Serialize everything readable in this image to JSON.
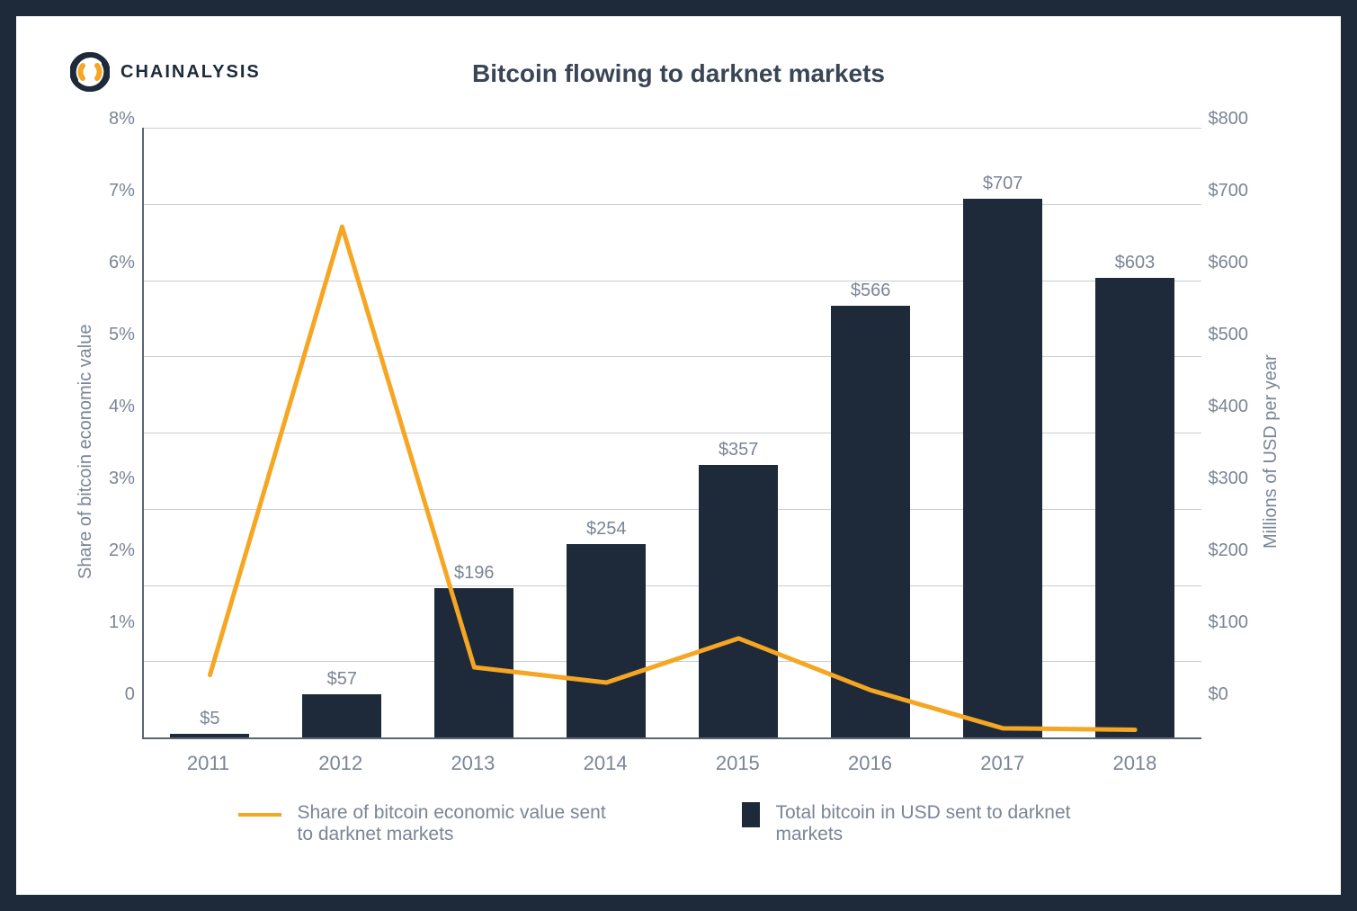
{
  "brand": "CHAINALYSIS",
  "logo": {
    "outer_color": "#1e2a3a",
    "accent_color": "#f5a623"
  },
  "chart": {
    "type": "bar+line",
    "title": "Bitcoin flowing to darknet markets",
    "categories": [
      "2011",
      "2012",
      "2013",
      "2014",
      "2015",
      "2016",
      "2017",
      "2018"
    ],
    "bars": {
      "values": [
        5,
        57,
        196,
        254,
        357,
        566,
        707,
        603
      ],
      "labels": [
        "$5",
        "$57",
        "$196",
        "$254",
        "$357",
        "$566",
        "$707",
        "$603"
      ],
      "color": "#1e2a3a",
      "axis": "right",
      "width_frac": 0.6
    },
    "line": {
      "values": [
        0.82,
        6.7,
        0.92,
        0.72,
        1.3,
        0.62,
        0.12,
        0.1
      ],
      "color": "#f5a623",
      "stroke_width": 5,
      "axis": "left"
    },
    "y_left": {
      "label": "Share of bitcoin economic value",
      "min": 0,
      "max": 8,
      "step": 1,
      "ticks": [
        "8%",
        "7%",
        "6%",
        "5%",
        "4%",
        "3%",
        "2%",
        "1%",
        "0"
      ]
    },
    "y_right": {
      "label": "Millions of USD per year",
      "min": 0,
      "max": 800,
      "step": 100,
      "ticks": [
        "$800",
        "$700",
        "$600",
        "$500",
        "$400",
        "$300",
        "$200",
        "$100",
        "$0"
      ]
    },
    "grid_color": "#c9cdd4",
    "axis_color": "#5b6576",
    "background_color": "#ffffff",
    "tick_font_color": "#7a8596",
    "tick_fontsize": 20,
    "title_fontsize": 28,
    "title_color": "#3a4556"
  },
  "legend": {
    "line_label": "Share of bitcoin economic value sent to darknet markets",
    "bar_label": "Total bitcoin in USD sent to darknet markets"
  }
}
